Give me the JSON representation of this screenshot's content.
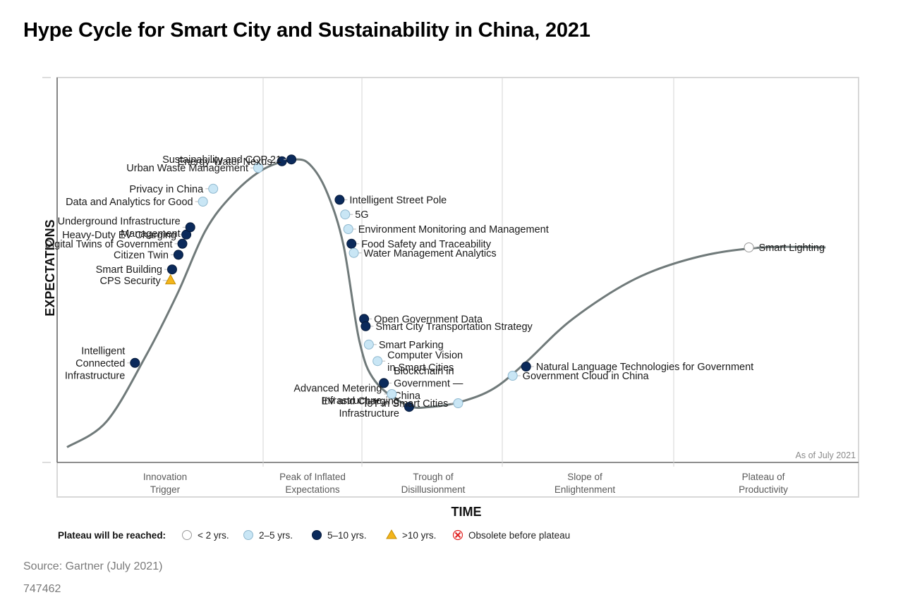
{
  "title": "Hype Cycle for Smart City and Sustainability in China, 2021",
  "colors": {
    "under2": "#ffffff",
    "y2to5": "#c9e6f5",
    "y5to10": "#0b2a5b",
    "over10": "#f3b51b",
    "obsolete": "#e02020",
    "curve": "#707a7a"
  },
  "chart_data": {
    "type": "scatter",
    "title": "Hype Cycle for Smart City and Sustainability in China, 2021",
    "xlabel": "TIME",
    "ylabel": "EXPECTATIONS",
    "as_of": "As of July 2021",
    "phases": [
      "Innovation\nTrigger",
      "Peak of Inflated\nExpectations",
      "Trough of\nDisillusionment",
      "Slope of\nEnlightenment",
      "Plateau of\nProductivity"
    ],
    "legend_title": "Plateau will be reached:",
    "legend": [
      {
        "key": "under2",
        "label": "< 2 yrs."
      },
      {
        "key": "y2to5",
        "label": "2–5 yrs."
      },
      {
        "key": "y5to10",
        "label": "5–10 yrs."
      },
      {
        "key": "over10",
        "label": ">10 yrs."
      },
      {
        "key": "obsolete",
        "label": "Obsolete before plateau"
      }
    ],
    "x_range": [
      0,
      100
    ],
    "y_range": [
      0,
      100
    ],
    "curve": [
      [
        0,
        3
      ],
      [
        5,
        10
      ],
      [
        10,
        28
      ],
      [
        14,
        45
      ],
      [
        17.5,
        62
      ],
      [
        21,
        72
      ],
      [
        25,
        79
      ],
      [
        29,
        81.5
      ],
      [
        31,
        79.5
      ],
      [
        33,
        72
      ],
      [
        35,
        58
      ],
      [
        37,
        32
      ],
      [
        39,
        21
      ],
      [
        43,
        14.5
      ],
      [
        46,
        14
      ],
      [
        50,
        15.5
      ],
      [
        54,
        19
      ],
      [
        58,
        26
      ],
      [
        64,
        38
      ],
      [
        72,
        49
      ],
      [
        80,
        55
      ],
      [
        88,
        57.5
      ],
      [
        96,
        57.5
      ]
    ],
    "points": [
      {
        "label": "Intelligent\nConnected\nInfrastructure",
        "x": 8.6,
        "y": 26,
        "cat": "y5to10",
        "side": "left"
      },
      {
        "label": "Smart Building",
        "x": 13.3,
        "y": 51.5,
        "cat": "y5to10",
        "side": "left"
      },
      {
        "label": "CPS Security",
        "x": 13.1,
        "y": 48.5,
        "cat": "over10",
        "side": "left"
      },
      {
        "label": "Citizen Twin",
        "x": 14.1,
        "y": 55.5,
        "cat": "y5to10",
        "side": "left"
      },
      {
        "label": "Digital Twins of Government",
        "x": 14.6,
        "y": 58.5,
        "cat": "y5to10",
        "side": "left"
      },
      {
        "label": "Heavy-Duty EV Charging",
        "x": 15.1,
        "y": 61,
        "cat": "y5to10",
        "side": "left"
      },
      {
        "label": "Underground Infrastructure\nManagement",
        "x": 15.6,
        "y": 63,
        "cat": "y5to10",
        "side": "left"
      },
      {
        "label": "Data and Analytics for Good",
        "x": 17.2,
        "y": 70,
        "cat": "y2to5",
        "side": "left"
      },
      {
        "label": "Privacy in China",
        "x": 18.5,
        "y": 73.5,
        "cat": "y2to5",
        "side": "left"
      },
      {
        "label": "Urban Waste Management",
        "x": 24.2,
        "y": 79.2,
        "cat": "y2to5",
        "side": "left"
      },
      {
        "label": "Energy-Water Nexus",
        "x": 27.2,
        "y": 81,
        "cat": "y5to10",
        "side": "left"
      },
      {
        "label": "Sustainability and COP 21",
        "x": 28.4,
        "y": 81.5,
        "cat": "y5to10",
        "side": "left"
      },
      {
        "label": "Intelligent Street Pole",
        "x": 34.5,
        "y": 70.5,
        "cat": "y5to10",
        "side": "right"
      },
      {
        "label": "5G",
        "x": 35.2,
        "y": 66.5,
        "cat": "y2to5",
        "side": "right"
      },
      {
        "label": "Environment Monitoring and Management",
        "x": 35.6,
        "y": 62.5,
        "cat": "y2to5",
        "side": "right"
      },
      {
        "label": "Food Safety and Traceability",
        "x": 36,
        "y": 58.5,
        "cat": "y5to10",
        "side": "right"
      },
      {
        "label": "Water Management Analytics",
        "x": 36.3,
        "y": 56,
        "cat": "y2to5",
        "side": "right"
      },
      {
        "label": "Open Government Data",
        "x": 37.6,
        "y": 38,
        "cat": "y5to10",
        "side": "right"
      },
      {
        "label": "Smart City Transportation Strategy",
        "x": 37.8,
        "y": 36,
        "cat": "y5to10",
        "side": "right"
      },
      {
        "label": "Smart Parking",
        "x": 38.2,
        "y": 31,
        "cat": "y2to5",
        "side": "right"
      },
      {
        "label": "Computer Vision\nin Smart Cities",
        "x": 39.3,
        "y": 26.5,
        "cat": "y2to5",
        "side": "right"
      },
      {
        "label": "Blockchain in\nGovernment —\nChina",
        "x": 40.1,
        "y": 20.5,
        "cat": "y5to10",
        "side": "right"
      },
      {
        "label": "Advanced Metering\nInfrastructure",
        "x": 41.1,
        "y": 17.5,
        "cat": "y2to5",
        "side": "left"
      },
      {
        "label": "EV and Charging\nInfrastructure",
        "x": 43.3,
        "y": 14,
        "cat": "y5to10",
        "side": "left"
      },
      {
        "label": "IoT in Smart Cities",
        "x": 49.5,
        "y": 15,
        "cat": "y2to5",
        "side": "left"
      },
      {
        "label": "Government Cloud in China",
        "x": 56.4,
        "y": 22.5,
        "cat": "y2to5",
        "side": "right"
      },
      {
        "label": "Natural Language Technologies for Government",
        "x": 58.1,
        "y": 25,
        "cat": "y5to10",
        "side": "right"
      },
      {
        "label": "Smart Lighting",
        "x": 86.3,
        "y": 57.5,
        "cat": "under2",
        "side": "right"
      }
    ]
  },
  "footer": {
    "source": "Source: Gartner (July 2021)",
    "doc_id": "747462"
  }
}
